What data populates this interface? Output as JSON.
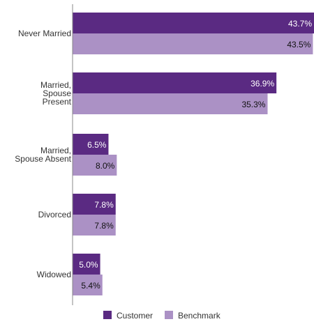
{
  "chart_data": {
    "type": "bar",
    "orientation": "horizontal",
    "categories": [
      [
        "Never Married"
      ],
      [
        "Married,",
        "Spouse",
        "Present"
      ],
      [
        "Married,",
        "Spouse Absent"
      ],
      [
        "Divorced"
      ],
      [
        "Widowed"
      ]
    ],
    "series": [
      {
        "name": "Customer",
        "values": [
          43.7,
          36.9,
          6.5,
          7.8,
          5.0
        ],
        "color": "#5a2a82",
        "label_color": "#ffffff"
      },
      {
        "name": "Benchmark",
        "values": [
          43.5,
          35.3,
          8.0,
          7.8,
          5.4
        ],
        "color": "#ab91c5",
        "label_color": "#111111"
      }
    ],
    "value_format": "percent_1dp",
    "xlim": [
      0,
      43.7
    ],
    "legend": "bottom-center",
    "grid": false
  }
}
